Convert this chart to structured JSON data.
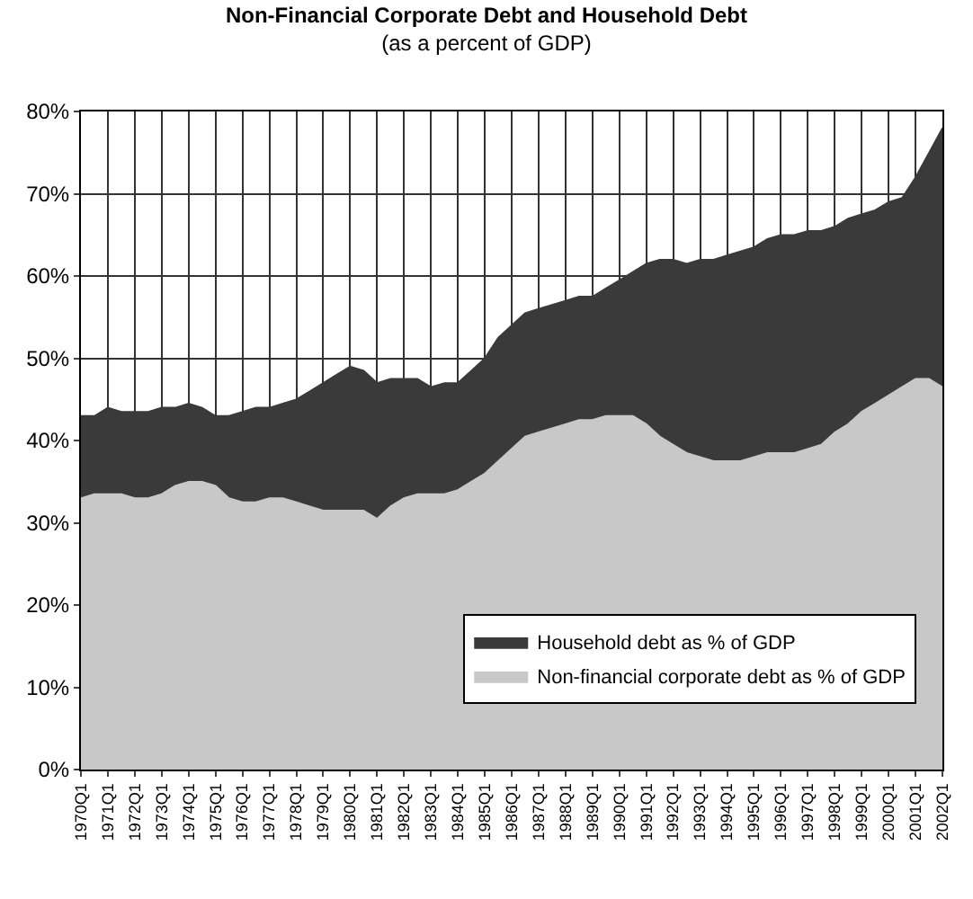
{
  "chart_data": {
    "type": "area",
    "stacked": true,
    "title": "Non-Financial Corporate Debt and Household Debt",
    "subtitle": "(as a percent of GDP)",
    "categories": [
      "1970Q1",
      null,
      "1971Q1",
      null,
      "1972Q1",
      null,
      "1973Q1",
      null,
      "1974Q1",
      null,
      "1975Q1",
      null,
      "1976Q1",
      null,
      "1977Q1",
      null,
      "1978Q1",
      null,
      "1979Q1",
      null,
      "1980Q1",
      null,
      "1981Q1",
      null,
      "1982Q1",
      null,
      "1983Q1",
      null,
      "1984Q1",
      null,
      "1985Q1",
      null,
      "1986Q1",
      null,
      "1987Q1",
      null,
      "1988Q1",
      null,
      "1989Q1",
      null,
      "1990Q1",
      null,
      "1991Q1",
      null,
      "1992Q1",
      null,
      "1993Q1",
      null,
      "1994Q1",
      null,
      "1995Q1",
      null,
      "1996Q1",
      null,
      "1997Q1",
      null,
      "1998Q1",
      null,
      "1999Q1",
      null,
      "2000Q1",
      null,
      "2001Q1",
      null,
      "2002Q1"
    ],
    "series": [
      {
        "name": "Non-financial corporate debt as % of GDP",
        "color": "#c8c8c8",
        "values": [
          33,
          33.5,
          33.5,
          33.5,
          33,
          33,
          33.5,
          34.5,
          35,
          35,
          34.5,
          33,
          32.5,
          32.5,
          33,
          33,
          32.5,
          32,
          31.5,
          31.5,
          31.5,
          31.5,
          30.5,
          32,
          33,
          33.5,
          33.5,
          33.5,
          34,
          35,
          36,
          37.5,
          39,
          40.5,
          41,
          41.5,
          42,
          42.5,
          42.5,
          43,
          43,
          43,
          42,
          40.5,
          39.5,
          38.5,
          38,
          37.5,
          37.5,
          37.5,
          38,
          38.5,
          38.5,
          38.5,
          39,
          39.5,
          41,
          42,
          43.5,
          44.5,
          45.5,
          46.5,
          47.5,
          47.5,
          46.5
        ]
      },
      {
        "name": "Household debt as % of GDP",
        "color": "#3a3a3a",
        "values": [
          10,
          9.5,
          10.5,
          10,
          10.5,
          10.5,
          10.5,
          9.5,
          9.5,
          9,
          8.5,
          10,
          11,
          11.5,
          11,
          11.5,
          12.5,
          14,
          15.5,
          16.5,
          17.5,
          17,
          16.5,
          15.5,
          14.5,
          14,
          13,
          13.5,
          13,
          13.5,
          14,
          15,
          15,
          15,
          15,
          15,
          15,
          15,
          15,
          15.5,
          16.5,
          17.5,
          19.5,
          21.5,
          22.5,
          23,
          24,
          24.5,
          25,
          25.5,
          25.5,
          26,
          26.5,
          26.5,
          26.5,
          26,
          25,
          25,
          24,
          23.5,
          23.5,
          23,
          24.5,
          27.5,
          31.5
        ]
      }
    ],
    "ylim": [
      0,
      80
    ],
    "yticks": [
      {
        "value": 0,
        "label": "0%"
      },
      {
        "value": 10,
        "label": "10%"
      },
      {
        "value": 20,
        "label": "20%"
      },
      {
        "value": 30,
        "label": "30%"
      },
      {
        "value": 40,
        "label": "40%"
      },
      {
        "value": 50,
        "label": "50%"
      },
      {
        "value": 60,
        "label": "60%"
      },
      {
        "value": 70,
        "label": "70%"
      },
      {
        "value": 80,
        "label": "80%"
      }
    ],
    "grid": true,
    "legend": "bottom right"
  }
}
